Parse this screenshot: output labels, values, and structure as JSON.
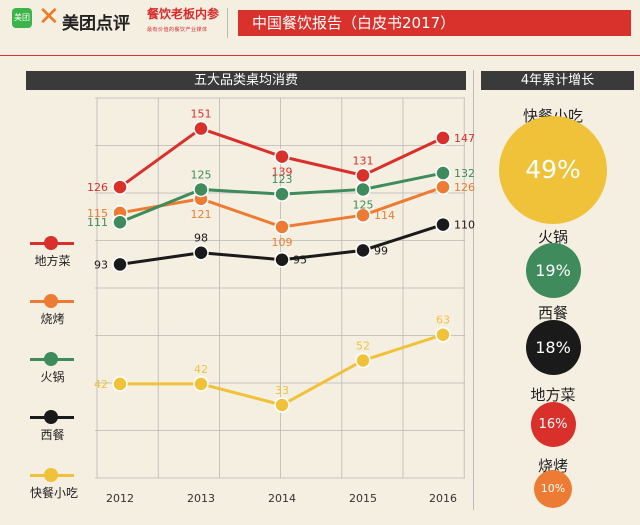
{
  "header": {
    "logo_icon_text": "美团",
    "brand": "美团点评",
    "sub_brand": "餐饮老板内参",
    "sub_brand_small": "最有价值的餐饮产业媒体",
    "report_title": "中国餐饮报告（白皮书2017）"
  },
  "left_panel_title": "五大品类桌均消费",
  "right_panel_title": "4年累计增长",
  "colors": {
    "地方菜": "#d9302b",
    "烧烤": "#ee7b33",
    "火锅": "#3f8b5c",
    "西餐": "#1a1a1a",
    "快餐小吃": "#f0c23a"
  },
  "chart_data": {
    "type": "line",
    "title": "五大品类桌均消费",
    "x": [
      "2012",
      "2013",
      "2014",
      "2015",
      "2016"
    ],
    "series": [
      {
        "name": "地方菜",
        "values": [
          126,
          151,
          139,
          131,
          147
        ]
      },
      {
        "name": "烧烤",
        "values": [
          115,
          121,
          109,
          114,
          126
        ]
      },
      {
        "name": "火锅",
        "values": [
          111,
          125,
          123,
          125,
          132
        ]
      },
      {
        "name": "西餐",
        "values": [
          93,
          98,
          95,
          99,
          110
        ]
      },
      {
        "name": "快餐小吃",
        "values": [
          42,
          42,
          33,
          52,
          63
        ]
      }
    ],
    "grid": true,
    "legend": "left"
  },
  "legend": [
    "地方菜",
    "烧烤",
    "火锅",
    "西餐",
    "快餐小吃"
  ],
  "growth": [
    {
      "name": "快餐小吃",
      "value": "49%"
    },
    {
      "name": "火锅",
      "value": "19%"
    },
    {
      "name": "西餐",
      "value": "18%"
    },
    {
      "name": "地方菜",
      "value": "16%"
    },
    {
      "name": "烧烤",
      "value": "10%"
    }
  ]
}
